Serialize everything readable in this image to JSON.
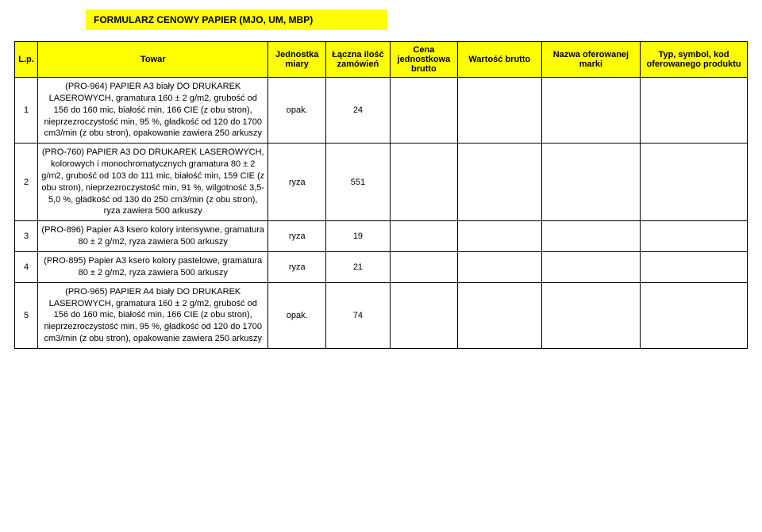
{
  "title": "FORMULARZ CENOWY PAPIER  (MJO, UM, MBP)",
  "columns": {
    "lp": "L.p.",
    "towar": "Towar",
    "jednostka": "Jednostka miary",
    "ilosc": "Łączna ilość zamówień",
    "cena": "Cena jednostkowa brutto",
    "wartosc": "Wartość brutto",
    "marka": "Nazwa oferowanej marki",
    "typ": "Typ, symbol, kod oferowanego produktu"
  },
  "rows": [
    {
      "lp": "1",
      "desc": "(PRO-964) PAPIER A3 biały DO DRUKAREK LASEROWYCH, gramatura 160 ± 2 g/m2, grubość od 156 do 160 mic, białość min, 166 CIE (z obu stron), nieprzezroczystość min, 95 %, gładkość od 120 do 1700 cm3/min (z obu stron), opakowanie zawiera 250 arkuszy",
      "unit": "opak.",
      "qty": "24",
      "cena": "",
      "wartosc": "",
      "marka": "",
      "typ": ""
    },
    {
      "lp": "2",
      "desc": "(PRO-760) PAPIER A3 DO DRUKAREK LASEROWYCH, kolorowych i monochromatycznych gramatura 80 ± 2 g/m2, grubość od 103 do 111 mic, białość min, 159 CIE (z obu stron), nieprzezroczystość min, 91 %, wilgotność 3,5-5,0 %, gładkość od 130 do 250 cm3/min (z obu stron), ryza zawiera 500 arkuszy",
      "unit": "ryza",
      "qty": "551",
      "cena": "",
      "wartosc": "",
      "marka": "",
      "typ": ""
    },
    {
      "lp": "3",
      "desc": "(PRO-896) Papier A3 ksero kolory intensywne, gramatura 80 ± 2 g/m2, ryza zawiera 500 arkuszy",
      "unit": "ryza",
      "qty": "19",
      "cena": "",
      "wartosc": "",
      "marka": "",
      "typ": ""
    },
    {
      "lp": "4",
      "desc": "(PRO-895) Papier A3 ksero kolory pastelowe, gramatura 80 ± 2 g/m2, ryza zawiera 500 arkuszy",
      "unit": "ryza",
      "qty": "21",
      "cena": "",
      "wartosc": "",
      "marka": "",
      "typ": ""
    },
    {
      "lp": "5",
      "desc": "(PRO-965) PAPIER A4 biały DO DRUKAREK LASEROWYCH, gramatura 160 ± 2 g/m2, grubość od 156 do 160 mic, białość min, 166 CIE (z obu stron), nieprzezroczystość min, 95 %, gładkość od 120 do 1700 cm3/min (z obu stron), opakowanie zawiera 250 arkuszy",
      "unit": "opak.",
      "qty": "74",
      "cena": "",
      "wartosc": "",
      "marka": "",
      "typ": ""
    }
  ]
}
